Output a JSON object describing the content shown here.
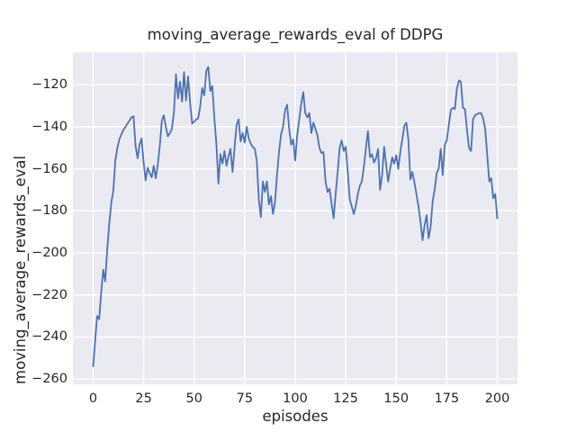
{
  "chart_data": {
    "type": "line",
    "title": "moving_average_rewards_eval of DDPG",
    "xlabel": "episodes",
    "ylabel": "moving_average_rewards_eval",
    "legend": "none",
    "grid": true,
    "axes_bg_color": "#eaeaf2",
    "grid_color": "#ffffff",
    "line_color": "#4c72b0",
    "text_color": "#262626",
    "xlim": [
      -10,
      210
    ],
    "ylim": [
      -262.5,
      -104.5
    ],
    "x_ticks": [
      0,
      25,
      50,
      75,
      100,
      125,
      150,
      175,
      200
    ],
    "y_ticks": [
      -260,
      -240,
      -220,
      -200,
      -180,
      -160,
      -140,
      -120
    ],
    "x_start": 0,
    "x_step": 1,
    "series": [
      {
        "name": "moving_average_rewards_eval",
        "values": [
          -254,
          -242,
          -230,
          -231.5,
          -219,
          -208,
          -213.5,
          -198,
          -186,
          -176,
          -170.5,
          -156,
          -150,
          -146,
          -143.5,
          -141.5,
          -140,
          -138.5,
          -137,
          -135.5,
          -135,
          -149,
          -155,
          -148.5,
          -145.5,
          -157,
          -165.5,
          -159.5,
          -162,
          -164,
          -158.5,
          -164.5,
          -158,
          -149,
          -137,
          -134.5,
          -140,
          -144.5,
          -143,
          -141,
          -133,
          -115,
          -126.5,
          -118.5,
          -128,
          -114,
          -127.5,
          -116,
          -128.5,
          -138.5,
          -137.5,
          -136.5,
          -136,
          -130,
          -121.5,
          -125,
          -113.5,
          -111.5,
          -123,
          -120.5,
          -136,
          -148,
          -167,
          -153,
          -157.5,
          -151.5,
          -158.5,
          -154,
          -150.5,
          -161.5,
          -150,
          -139,
          -136.5,
          -147,
          -143,
          -147.5,
          -140,
          -145.5,
          -148,
          -149.5,
          -150.5,
          -156,
          -174.5,
          -183,
          -166,
          -171,
          -166,
          -177,
          -173,
          -181.5,
          -176,
          -163,
          -152,
          -143.5,
          -140,
          -132,
          -129.5,
          -141,
          -148.5,
          -146,
          -156,
          -144,
          -136.5,
          -129,
          -123.5,
          -133.5,
          -135.5,
          -133.5,
          -143,
          -138,
          -141,
          -144,
          -150,
          -152.5,
          -152,
          -166,
          -171,
          -169.5,
          -176.5,
          -183.5,
          -172,
          -161.5,
          -150,
          -146.5,
          -151.5,
          -149.5,
          -161.5,
          -174.5,
          -178,
          -181.5,
          -177.5,
          -172,
          -168,
          -166,
          -159,
          -150,
          -142,
          -154.5,
          -153,
          -157,
          -155,
          -150.5,
          -170,
          -163,
          -149.5,
          -158,
          -166,
          -160,
          -154.5,
          -157.5,
          -153.5,
          -160,
          -152,
          -146,
          -139.5,
          -138,
          -146,
          -165,
          -161.5,
          -166.5,
          -172,
          -178,
          -185,
          -194,
          -187,
          -182,
          -193,
          -188,
          -175.5,
          -170,
          -162,
          -160,
          -150.5,
          -163,
          -148.5,
          -146.5,
          -139,
          -132,
          -131,
          -131.5,
          -122,
          -118,
          -118.5,
          -131,
          -131.5,
          -141.5,
          -150,
          -151.5,
          -136.5,
          -134.5,
          -134,
          -133.5,
          -133.5,
          -136,
          -141,
          -153,
          -166,
          -164.5,
          -174,
          -172,
          -183.5
        ]
      }
    ]
  }
}
